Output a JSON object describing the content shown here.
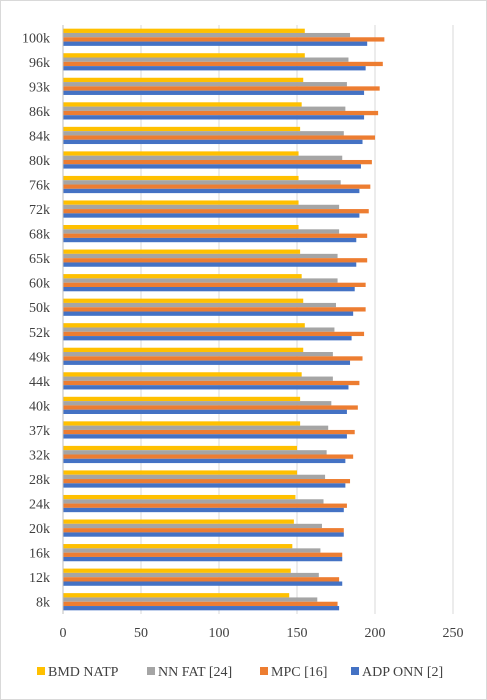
{
  "chart_data": {
    "type": "bar",
    "orientation": "horizontal",
    "categories": [
      "100k",
      "96k",
      "93k",
      "86k",
      "84k",
      "80k",
      "76k",
      "72k",
      "68k",
      "65k",
      "60k",
      "50k",
      "52k",
      "49k",
      "44k",
      "40k",
      "37k",
      "32k",
      "28k",
      "24k",
      "20k",
      "16k",
      "12k",
      "8k"
    ],
    "series": [
      {
        "name": "BMD NATP",
        "color": "#FFC000",
        "values": [
          155,
          155,
          154,
          153,
          152,
          151,
          151,
          151,
          151,
          152,
          153,
          154,
          155,
          154,
          153,
          152,
          152,
          150,
          150,
          149,
          148,
          147,
          146,
          145
        ]
      },
      {
        "name": "NN FAT [24]",
        "color": "#A5A5A5",
        "values": [
          184,
          183,
          182,
          181,
          180,
          179,
          178,
          177,
          177,
          176,
          176,
          175,
          174,
          173,
          173,
          172,
          170,
          169,
          168,
          167,
          166,
          165,
          164,
          163
        ]
      },
      {
        "name": "MPC [16]",
        "color": "#ED7D31",
        "values": [
          206,
          205,
          203,
          202,
          200,
          198,
          197,
          196,
          195,
          195,
          194,
          194,
          193,
          192,
          190,
          189,
          187,
          186,
          184,
          182,
          180,
          179,
          177,
          176
        ]
      },
      {
        "name": "ADP ONN [2]",
        "color": "#4472C4",
        "values": [
          195,
          194,
          193,
          193,
          192,
          191,
          190,
          190,
          188,
          188,
          187,
          186,
          185,
          184,
          183,
          182,
          182,
          181,
          181,
          180,
          180,
          179,
          179,
          177
        ]
      }
    ],
    "xlim": [
      0,
      250
    ],
    "xticks": [
      "0",
      "50",
      "100",
      "150",
      "200",
      "250"
    ],
    "grid": "vertical",
    "legend": "bottom",
    "title": "",
    "xlabel": "",
    "ylabel": ""
  }
}
